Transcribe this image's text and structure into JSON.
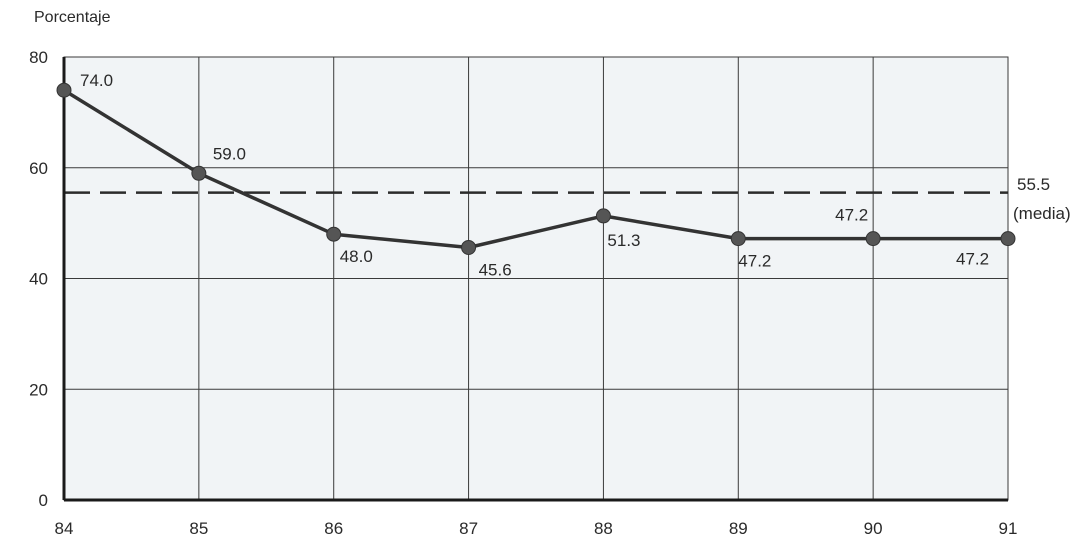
{
  "chart_data": {
    "type": "line",
    "ylabel": "Porcentaje",
    "categories": [
      "84",
      "85",
      "86",
      "87",
      "88",
      "89",
      "90",
      "91"
    ],
    "values": [
      74.0,
      59.0,
      48.0,
      45.6,
      51.3,
      47.2,
      47.2,
      47.2
    ],
    "data_labels": [
      "74.0",
      "59.0",
      "48.0",
      "45.6",
      "51.3",
      "47.2",
      "47.2",
      "47.2"
    ],
    "y_ticks": [
      "0",
      "20",
      "40",
      "60",
      "80"
    ],
    "ylim": [
      0,
      80
    ],
    "grid": true,
    "reference_line": {
      "value": 55.5,
      "label_value": "55.5",
      "label_text": "(media)",
      "style": "dashed"
    },
    "colors": {
      "background": "#f1f4f6",
      "grid": "#3a3a3a",
      "line": "#333333",
      "marker": "#555555"
    }
  }
}
